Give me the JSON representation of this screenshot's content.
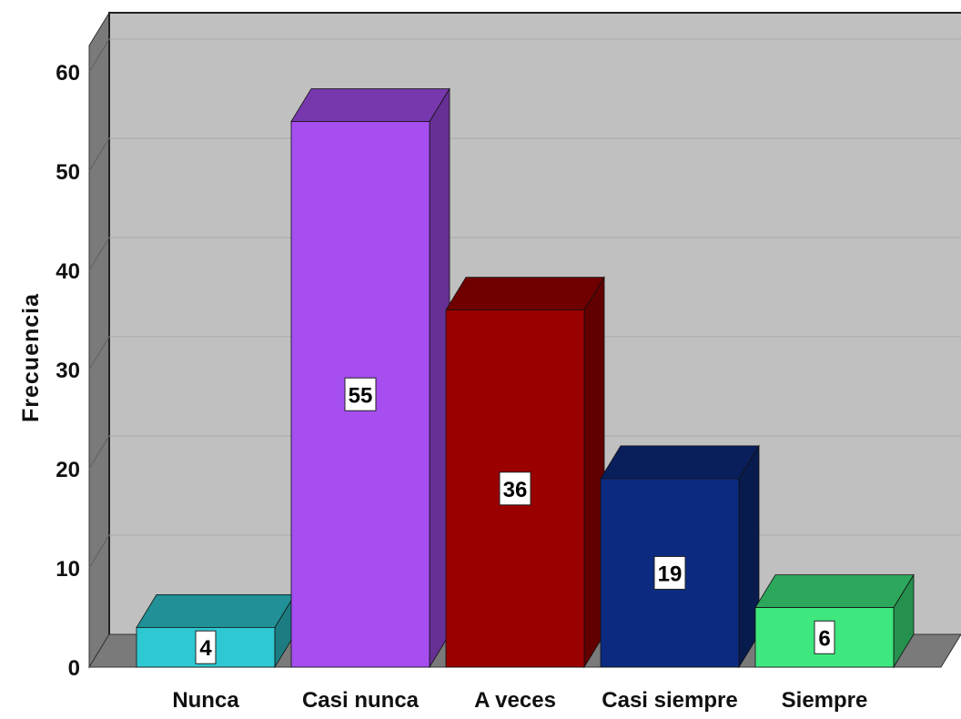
{
  "chart_data": {
    "type": "bar",
    "style": "3d",
    "title": "",
    "xlabel": "",
    "ylabel": "Frecuencia",
    "ylim": [
      0,
      60
    ],
    "yticks": [
      0,
      10,
      20,
      30,
      40,
      50,
      60
    ],
    "grid": true,
    "legend": "none",
    "categories": [
      "Nunca",
      "Casi nunca",
      "A veces",
      "Casi siempre",
      "Siempre"
    ],
    "values": [
      4,
      55,
      36,
      19,
      6
    ],
    "data_labels": [
      "4",
      "55",
      "36",
      "19",
      "6"
    ],
    "colors": [
      "#2ec8d2",
      "#a64ef0",
      "#9b0000",
      "#0c2b80",
      "#3ee87e"
    ],
    "panel_color": "#c0c0c0",
    "wall_color": "#7a7a7a"
  }
}
